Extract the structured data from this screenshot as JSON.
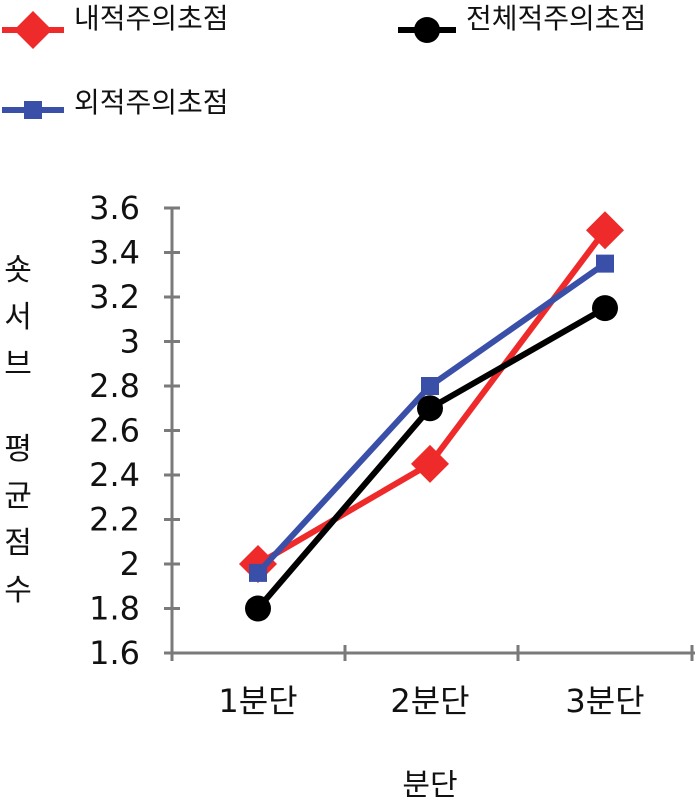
{
  "chart_data": {
    "type": "line",
    "categories": [
      "1분단",
      "2분단",
      "3분단"
    ],
    "series": [
      {
        "name": "내적주의초점",
        "values": [
          2.0,
          2.45,
          3.5
        ],
        "color": "#ee2a2a",
        "marker": "diamond"
      },
      {
        "name": "외적주의초점",
        "values": [
          1.96,
          2.8,
          3.35
        ],
        "color": "#3a50a8",
        "marker": "square"
      },
      {
        "name": "전체적주의초점",
        "values": [
          1.8,
          2.7,
          3.15
        ],
        "color": "#000000",
        "marker": "circle"
      }
    ],
    "title": "",
    "xlabel": "분단",
    "ylabel": "숏서브 평균점수",
    "ylim": [
      1.6,
      3.6
    ],
    "yticks": [
      "1.6",
      "1.8",
      "2",
      "2.2",
      "2.4",
      "2.6",
      "2.8",
      "3",
      "3.2",
      "3.4",
      "3.6"
    ],
    "grid": false,
    "legend_position": "top"
  }
}
